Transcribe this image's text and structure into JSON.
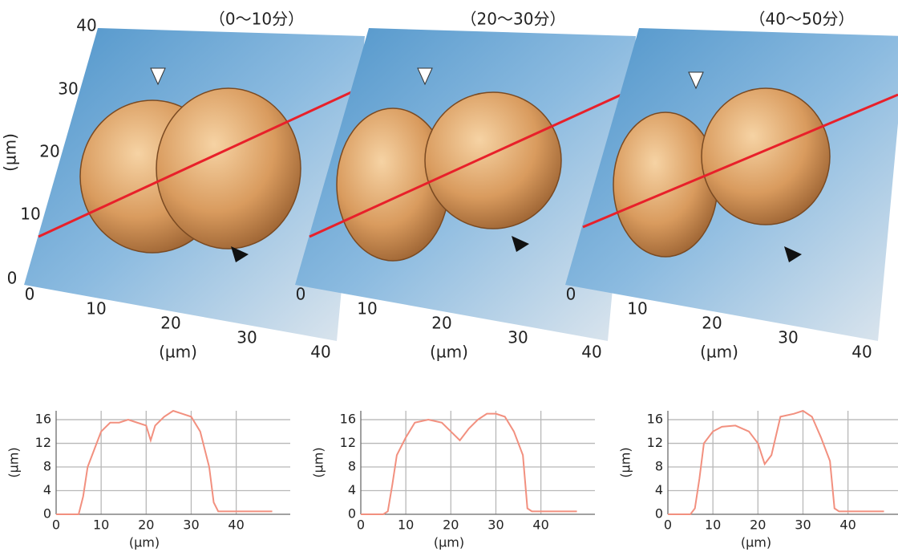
{
  "images": [
    {
      "title": "（0～10分）",
      "yticks": [
        40,
        30,
        20,
        10,
        0
      ],
      "y_label": "(µm)",
      "xticks": [
        0,
        10,
        20,
        30,
        40
      ],
      "x_label": "(µm)"
    },
    {
      "title": "（20～30分）",
      "xticks": [
        0,
        10,
        20,
        30,
        40
      ],
      "x_label": "(µm)"
    },
    {
      "title": "（40～50分）",
      "xticks": [
        0,
        10,
        20,
        30,
        40
      ],
      "x_label": "(µm)"
    }
  ],
  "chart_data": [
    {
      "type": "line",
      "xlabel": "(µm)",
      "ylabel": "(µm)",
      "color": "#f2907f",
      "grid": true,
      "xlim": [
        0,
        52
      ],
      "ylim": [
        0,
        17.5
      ],
      "xticks": [
        0,
        10,
        20,
        30,
        40
      ],
      "yticks": [
        0,
        4,
        8,
        12,
        16
      ],
      "x": [
        0,
        5,
        6,
        7,
        8,
        9,
        10,
        12,
        14,
        16,
        18,
        20,
        21,
        22,
        24,
        26,
        28,
        30,
        32,
        34,
        35,
        36,
        38,
        48
      ],
      "values": [
        0,
        0,
        3,
        8,
        10,
        12,
        14,
        15.5,
        15.5,
        16,
        15.5,
        15,
        12.5,
        15,
        16.5,
        17.5,
        17,
        16.5,
        14,
        8,
        2,
        0.5,
        0.5,
        0.5
      ]
    },
    {
      "type": "line",
      "xlabel": "(µm)",
      "ylabel": "(µm)",
      "color": "#f2907f",
      "grid": true,
      "xlim": [
        0,
        52
      ],
      "ylim": [
        0,
        17.5
      ],
      "xticks": [
        0,
        10,
        20,
        30,
        40
      ],
      "yticks": [
        0,
        4,
        8,
        12,
        16
      ],
      "x": [
        0,
        5,
        6,
        7,
        8,
        10,
        12,
        15,
        18,
        20,
        22,
        24,
        26,
        28,
        30,
        32,
        34,
        36,
        37,
        38,
        48
      ],
      "values": [
        0,
        0,
        0.5,
        5,
        10,
        13,
        15.5,
        16,
        15.5,
        14,
        12.5,
        14.5,
        16,
        17,
        17,
        16.5,
        14,
        10,
        1,
        0.5,
        0.5
      ]
    },
    {
      "type": "line",
      "xlabel": "(µm)",
      "ylabel": "(µm)",
      "color": "#f2907f",
      "grid": true,
      "xlim": [
        0,
        52
      ],
      "ylim": [
        0,
        17.5
      ],
      "xticks": [
        0,
        10,
        20,
        30,
        40
      ],
      "yticks": [
        0,
        4,
        8,
        12,
        16
      ],
      "x": [
        0,
        5,
        6,
        7,
        8,
        10,
        12,
        15,
        18,
        20,
        21.5,
        23,
        25,
        28,
        30,
        32,
        34,
        36,
        37,
        38,
        48
      ],
      "values": [
        0,
        0,
        1,
        6,
        12,
        14,
        14.8,
        15,
        14,
        12,
        8.5,
        10,
        16.5,
        17,
        17.5,
        16.5,
        13,
        9,
        1,
        0.5,
        0.5
      ]
    }
  ]
}
